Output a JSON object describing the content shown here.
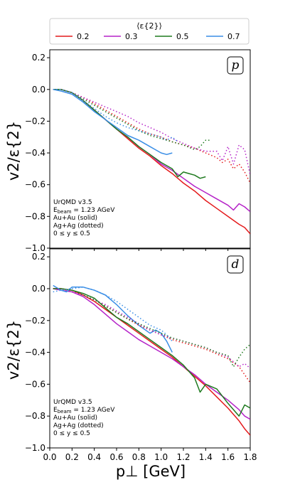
{
  "legend": {
    "title": "⟨ε{2}⟩",
    "entries": [
      {
        "label": "0.2",
        "color": "#e41a1c"
      },
      {
        "label": "0.3",
        "color": "#b522c8"
      },
      {
        "label": "0.5",
        "color": "#1f7a1f"
      },
      {
        "label": "0.7",
        "color": "#3a8ee6"
      }
    ]
  },
  "axes": {
    "xlabel": "p⊥ [GeV]",
    "ylabel": "v2/ε{2}",
    "xticks": [
      "0.0",
      "0.2",
      "0.4",
      "0.6",
      "0.8",
      "1.0",
      "1.2",
      "1.4",
      "1.6",
      "1.8"
    ],
    "yticks": [
      "0.2",
      "0.0",
      "−0.2",
      "−0.4",
      "−0.6",
      "−0.8",
      "−1.0"
    ]
  },
  "annotation": {
    "line1": "UrQMD v3.5",
    "line2_main": "E",
    "line2_sub": "beam",
    "line2_rest": " = 1.23 AGeV",
    "line3": "Au+Au (solid)",
    "line4": "Ag+Ag (dotted)",
    "line5": "0 ≤ y ≤ 0.5"
  },
  "chart_data": [
    {
      "type": "line",
      "panel_label": "p",
      "xlim": [
        0.0,
        1.8
      ],
      "ylim": [
        -1.0,
        0.25
      ],
      "series": [
        {
          "color": "#e41a1c",
          "style": "solid",
          "x": [
            0.03,
            0.1,
            0.2,
            0.3,
            0.4,
            0.5,
            0.6,
            0.7,
            0.8,
            0.9,
            1.0,
            1.1,
            1.2,
            1.3,
            1.4,
            1.5,
            1.6,
            1.7,
            1.75,
            1.8
          ],
          "y": [
            0.0,
            0.0,
            -0.02,
            -0.07,
            -0.13,
            -0.19,
            -0.25,
            -0.31,
            -0.37,
            -0.42,
            -0.48,
            -0.53,
            -0.59,
            -0.64,
            -0.7,
            -0.75,
            -0.8,
            -0.85,
            -0.87,
            -0.91
          ]
        },
        {
          "color": "#b522c8",
          "style": "solid",
          "x": [
            0.03,
            0.1,
            0.2,
            0.3,
            0.4,
            0.5,
            0.6,
            0.7,
            0.8,
            0.9,
            1.0,
            1.1,
            1.2,
            1.3,
            1.4,
            1.5,
            1.6,
            1.65,
            1.7,
            1.75,
            1.8
          ],
          "y": [
            0.0,
            0.0,
            -0.02,
            -0.07,
            -0.13,
            -0.19,
            -0.25,
            -0.3,
            -0.36,
            -0.41,
            -0.47,
            -0.51,
            -0.56,
            -0.61,
            -0.65,
            -0.69,
            -0.73,
            -0.76,
            -0.72,
            -0.74,
            -0.77
          ]
        },
        {
          "color": "#1f7a1f",
          "style": "solid",
          "x": [
            0.03,
            0.1,
            0.2,
            0.3,
            0.4,
            0.5,
            0.6,
            0.7,
            0.8,
            0.9,
            1.0,
            1.1,
            1.15,
            1.2,
            1.25,
            1.3,
            1.35,
            1.4
          ],
          "y": [
            0.0,
            0.0,
            -0.02,
            -0.07,
            -0.13,
            -0.19,
            -0.25,
            -0.3,
            -0.36,
            -0.41,
            -0.46,
            -0.5,
            -0.55,
            -0.52,
            -0.53,
            -0.54,
            -0.56,
            -0.55
          ]
        },
        {
          "color": "#3a8ee6",
          "style": "solid",
          "x": [
            0.03,
            0.1,
            0.2,
            0.3,
            0.4,
            0.5,
            0.6,
            0.7,
            0.8,
            0.9,
            0.95,
            1.0,
            1.05,
            1.1
          ],
          "y": [
            0.0,
            -0.01,
            -0.03,
            -0.08,
            -0.14,
            -0.19,
            -0.24,
            -0.29,
            -0.32,
            -0.36,
            -0.38,
            -0.4,
            -0.41,
            -0.4
          ]
        },
        {
          "color": "#e41a1c",
          "style": "dotted",
          "x": [
            0.03,
            0.1,
            0.2,
            0.3,
            0.4,
            0.5,
            0.6,
            0.7,
            0.8,
            0.9,
            1.0,
            1.1,
            1.2,
            1.3,
            1.4,
            1.5,
            1.55,
            1.6,
            1.65,
            1.7,
            1.75,
            1.8
          ],
          "y": [
            0.0,
            0.0,
            -0.02,
            -0.05,
            -0.09,
            -0.13,
            -0.17,
            -0.21,
            -0.25,
            -0.28,
            -0.3,
            -0.33,
            -0.35,
            -0.37,
            -0.4,
            -0.43,
            -0.46,
            -0.44,
            -0.5,
            -0.47,
            -0.52,
            -0.59
          ]
        },
        {
          "color": "#b522c8",
          "style": "dotted",
          "x": [
            0.03,
            0.1,
            0.2,
            0.3,
            0.4,
            0.5,
            0.6,
            0.7,
            0.8,
            0.9,
            1.0,
            1.1,
            1.2,
            1.3,
            1.4,
            1.5,
            1.55,
            1.6,
            1.65,
            1.7,
            1.75,
            1.8
          ],
          "y": [
            0.0,
            0.0,
            -0.02,
            -0.05,
            -0.08,
            -0.11,
            -0.14,
            -0.17,
            -0.21,
            -0.24,
            -0.27,
            -0.31,
            -0.34,
            -0.37,
            -0.39,
            -0.39,
            -0.45,
            -0.36,
            -0.47,
            -0.35,
            -0.38,
            -0.54
          ]
        },
        {
          "color": "#1f7a1f",
          "style": "dotted",
          "x": [
            0.03,
            0.1,
            0.2,
            0.3,
            0.4,
            0.5,
            0.6,
            0.7,
            0.8,
            0.9,
            1.0,
            1.1,
            1.2,
            1.3,
            1.35,
            1.4,
            1.45
          ],
          "y": [
            0.0,
            0.0,
            -0.02,
            -0.06,
            -0.1,
            -0.14,
            -0.18,
            -0.22,
            -0.26,
            -0.29,
            -0.31,
            -0.33,
            -0.35,
            -0.38,
            -0.36,
            -0.32,
            -0.32
          ]
        },
        {
          "color": "#3a8ee6",
          "style": "dotted",
          "x": [
            0.03,
            0.1,
            0.2,
            0.3,
            0.4,
            0.5,
            0.6,
            0.7,
            0.8,
            0.9,
            1.0,
            1.05,
            1.1,
            1.15
          ],
          "y": [
            0.0,
            0.0,
            -0.02,
            -0.07,
            -0.12,
            -0.17,
            -0.21,
            -0.24,
            -0.26,
            -0.28,
            -0.3,
            -0.32,
            -0.3,
            -0.33
          ]
        }
      ]
    },
    {
      "type": "line",
      "panel_label": "d",
      "xlim": [
        0.0,
        1.8
      ],
      "ylim": [
        -1.0,
        0.25
      ],
      "series": [
        {
          "color": "#e41a1c",
          "style": "solid",
          "x": [
            0.03,
            0.1,
            0.2,
            0.3,
            0.4,
            0.5,
            0.6,
            0.7,
            0.8,
            0.9,
            1.0,
            1.1,
            1.2,
            1.3,
            1.4,
            1.5,
            1.6,
            1.7,
            1.75,
            1.8
          ],
          "y": [
            0.0,
            0.0,
            -0.01,
            -0.04,
            -0.08,
            -0.13,
            -0.18,
            -0.23,
            -0.28,
            -0.33,
            -0.38,
            -0.43,
            -0.49,
            -0.55,
            -0.61,
            -0.68,
            -0.75,
            -0.83,
            -0.88,
            -0.92
          ]
        },
        {
          "color": "#b522c8",
          "style": "solid",
          "x": [
            0.03,
            0.1,
            0.2,
            0.3,
            0.4,
            0.5,
            0.6,
            0.7,
            0.8,
            0.9,
            1.0,
            1.1,
            1.2,
            1.3,
            1.4,
            1.5,
            1.6,
            1.7,
            1.75,
            1.8
          ],
          "y": [
            0.0,
            -0.01,
            -0.02,
            -0.05,
            -0.1,
            -0.16,
            -0.22,
            -0.27,
            -0.32,
            -0.36,
            -0.4,
            -0.44,
            -0.49,
            -0.54,
            -0.6,
            -0.65,
            -0.7,
            -0.76,
            -0.8,
            -0.82
          ]
        },
        {
          "color": "#1f7a1f",
          "style": "solid",
          "x": [
            0.03,
            0.1,
            0.2,
            0.3,
            0.4,
            0.5,
            0.6,
            0.7,
            0.8,
            0.9,
            1.0,
            1.1,
            1.2,
            1.3,
            1.35,
            1.4,
            1.5,
            1.6,
            1.7,
            1.75,
            1.8
          ],
          "y": [
            0.0,
            0.0,
            -0.01,
            -0.03,
            -0.06,
            -0.12,
            -0.18,
            -0.22,
            -0.27,
            -0.32,
            -0.37,
            -0.42,
            -0.48,
            -0.56,
            -0.65,
            -0.6,
            -0.63,
            -0.72,
            -0.8,
            -0.73,
            -0.75
          ]
        },
        {
          "color": "#3a8ee6",
          "style": "solid",
          "x": [
            0.03,
            0.1,
            0.15,
            0.2,
            0.3,
            0.4,
            0.5,
            0.6,
            0.7,
            0.8,
            0.9,
            0.95,
            1.0,
            1.05,
            1.1
          ],
          "y": [
            0.02,
            -0.01,
            -0.02,
            0.01,
            0.01,
            -0.01,
            -0.04,
            -0.1,
            -0.17,
            -0.23,
            -0.28,
            -0.26,
            -0.28,
            -0.33,
            -0.4
          ]
        },
        {
          "color": "#e41a1c",
          "style": "dotted",
          "x": [
            0.03,
            0.1,
            0.2,
            0.3,
            0.4,
            0.5,
            0.6,
            0.7,
            0.8,
            0.9,
            1.0,
            1.1,
            1.2,
            1.3,
            1.4,
            1.5,
            1.6,
            1.7,
            1.75,
            1.8
          ],
          "y": [
            0.0,
            0.0,
            -0.02,
            -0.04,
            -0.07,
            -0.11,
            -0.15,
            -0.19,
            -0.23,
            -0.26,
            -0.29,
            -0.32,
            -0.34,
            -0.36,
            -0.38,
            -0.41,
            -0.44,
            -0.49,
            -0.54,
            -0.59
          ]
        },
        {
          "color": "#b522c8",
          "style": "dotted",
          "x": [
            0.03,
            0.1,
            0.2,
            0.3,
            0.4,
            0.5,
            0.6,
            0.7,
            0.8,
            0.9,
            1.0,
            1.1,
            1.2,
            1.3,
            1.4,
            1.5,
            1.6,
            1.65,
            1.7,
            1.75,
            1.8
          ],
          "y": [
            0.0,
            0.0,
            -0.02,
            -0.04,
            -0.07,
            -0.1,
            -0.14,
            -0.18,
            -0.22,
            -0.26,
            -0.29,
            -0.31,
            -0.33,
            -0.35,
            -0.37,
            -0.4,
            -0.43,
            -0.46,
            -0.49,
            -0.47,
            -0.5
          ]
        },
        {
          "color": "#1f7a1f",
          "style": "dotted",
          "x": [
            0.03,
            0.1,
            0.2,
            0.3,
            0.4,
            0.5,
            0.6,
            0.7,
            0.8,
            0.9,
            1.0,
            1.1,
            1.2,
            1.3,
            1.4,
            1.5,
            1.6,
            1.65,
            1.7,
            1.75,
            1.8
          ],
          "y": [
            0.0,
            0.0,
            -0.01,
            -0.04,
            -0.07,
            -0.11,
            -0.15,
            -0.19,
            -0.22,
            -0.25,
            -0.28,
            -0.31,
            -0.33,
            -0.35,
            -0.37,
            -0.4,
            -0.42,
            -0.49,
            -0.43,
            -0.38,
            -0.35
          ]
        },
        {
          "color": "#3a8ee6",
          "style": "dotted",
          "x": [
            0.03,
            0.1,
            0.2,
            0.3,
            0.4,
            0.5,
            0.6,
            0.7,
            0.8,
            0.9,
            1.0,
            1.05,
            1.1
          ],
          "y": [
            -0.02,
            -0.01,
            0.0,
            0.01,
            -0.01,
            -0.04,
            -0.08,
            -0.13,
            -0.18,
            -0.23,
            -0.26,
            -0.29,
            -0.33
          ]
        }
      ]
    }
  ]
}
